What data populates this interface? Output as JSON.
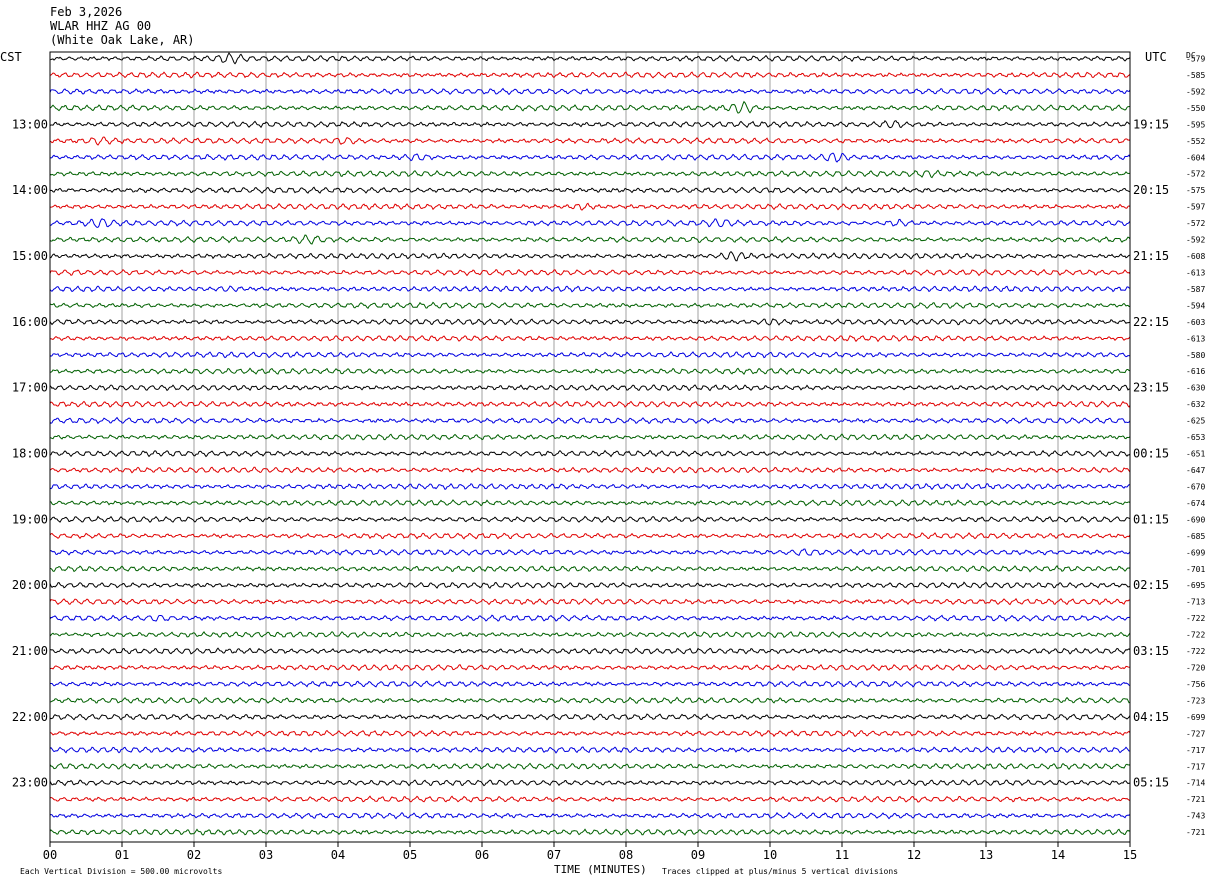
{
  "header": {
    "date": "Feb 3,2026",
    "station": "WLAR HHZ AG 00",
    "location": "(White Oak Lake, AR)"
  },
  "left_timezone": "CST",
  "right_timezone": "UTC",
  "dc_label": "DC",
  "footer": {
    "scale_note": "Each Vertical Division =  500.00 microvolts",
    "xlabel": "TIME (MINUTES)",
    "clip_note": "Traces clipped at plus/minus 5 vertical divisions"
  },
  "colors": {
    "cycle": [
      "#000000",
      "#e00000",
      "#0000e0",
      "#006000"
    ],
    "grid": "#a0a0a0",
    "frame": "#000000"
  },
  "chart_data": {
    "type": "line",
    "x_axis": {
      "label": "TIME (MINUTES)",
      "range": [
        0,
        15
      ],
      "ticks": [
        "00",
        "01",
        "02",
        "03",
        "04",
        "05",
        "06",
        "07",
        "08",
        "09",
        "10",
        "11",
        "12",
        "13",
        "14",
        "15"
      ]
    },
    "left_hour_labels": [
      "13:00",
      "14:00",
      "15:00",
      "16:00",
      "17:00",
      "18:00",
      "19:00",
      "20:00",
      "21:00",
      "22:00",
      "23:00"
    ],
    "right_hour_labels": [
      "19:15",
      "20:15",
      "21:15",
      "22:15",
      "23:15",
      "00:15",
      "01:15",
      "02:15",
      "03:15",
      "04:15",
      "05:15"
    ],
    "dc_offsets": [
      "-579",
      "-585",
      "-592",
      "-550",
      "-595",
      "-552",
      "-604",
      "-572",
      "-575",
      "-597",
      "-572",
      "-592",
      "-608",
      "-613",
      "-587",
      "-594",
      "-603",
      "-613",
      "-580",
      "-616",
      "-630",
      "-632",
      "-625",
      "-653",
      "-651",
      "-647",
      "-670",
      "-674",
      "-690",
      "-685",
      "-699",
      "-701",
      "-695",
      "-713",
      "-722",
      "-722",
      "-722",
      "-720",
      "-756",
      "-723",
      "-699",
      "-727",
      "-717",
      "-717",
      "-714",
      "-721",
      "-743",
      "-721"
    ],
    "events": [
      {
        "trace": 0,
        "minute": 2.5,
        "amp": 3.0
      },
      {
        "trace": 3,
        "minute": 9.6,
        "amp": 4.5
      },
      {
        "trace": 4,
        "minute": 11.7,
        "amp": 2.5
      },
      {
        "trace": 5,
        "minute": 0.7,
        "amp": 2.0
      },
      {
        "trace": 5,
        "minute": 4.1,
        "amp": 2.0
      },
      {
        "trace": 6,
        "minute": 5.1,
        "amp": 2.0
      },
      {
        "trace": 6,
        "minute": 10.9,
        "amp": 3.0
      },
      {
        "trace": 7,
        "minute": 12.2,
        "amp": 1.5
      },
      {
        "trace": 9,
        "minute": 7.4,
        "amp": 2.0
      },
      {
        "trace": 10,
        "minute": 0.7,
        "amp": 3.0
      },
      {
        "trace": 10,
        "minute": 9.3,
        "amp": 2.0
      },
      {
        "trace": 10,
        "minute": 11.8,
        "amp": 2.0
      },
      {
        "trace": 11,
        "minute": 3.6,
        "amp": 2.5
      },
      {
        "trace": 12,
        "minute": 9.5,
        "amp": 3.0
      },
      {
        "trace": 14,
        "minute": 2.5,
        "amp": 1.5
      },
      {
        "trace": 16,
        "minute": 10.0,
        "amp": 2.0
      },
      {
        "trace": 30,
        "minute": 10.5,
        "amp": 1.5
      },
      {
        "trace": 34,
        "minute": 1.5,
        "amp": 1.5
      }
    ]
  }
}
